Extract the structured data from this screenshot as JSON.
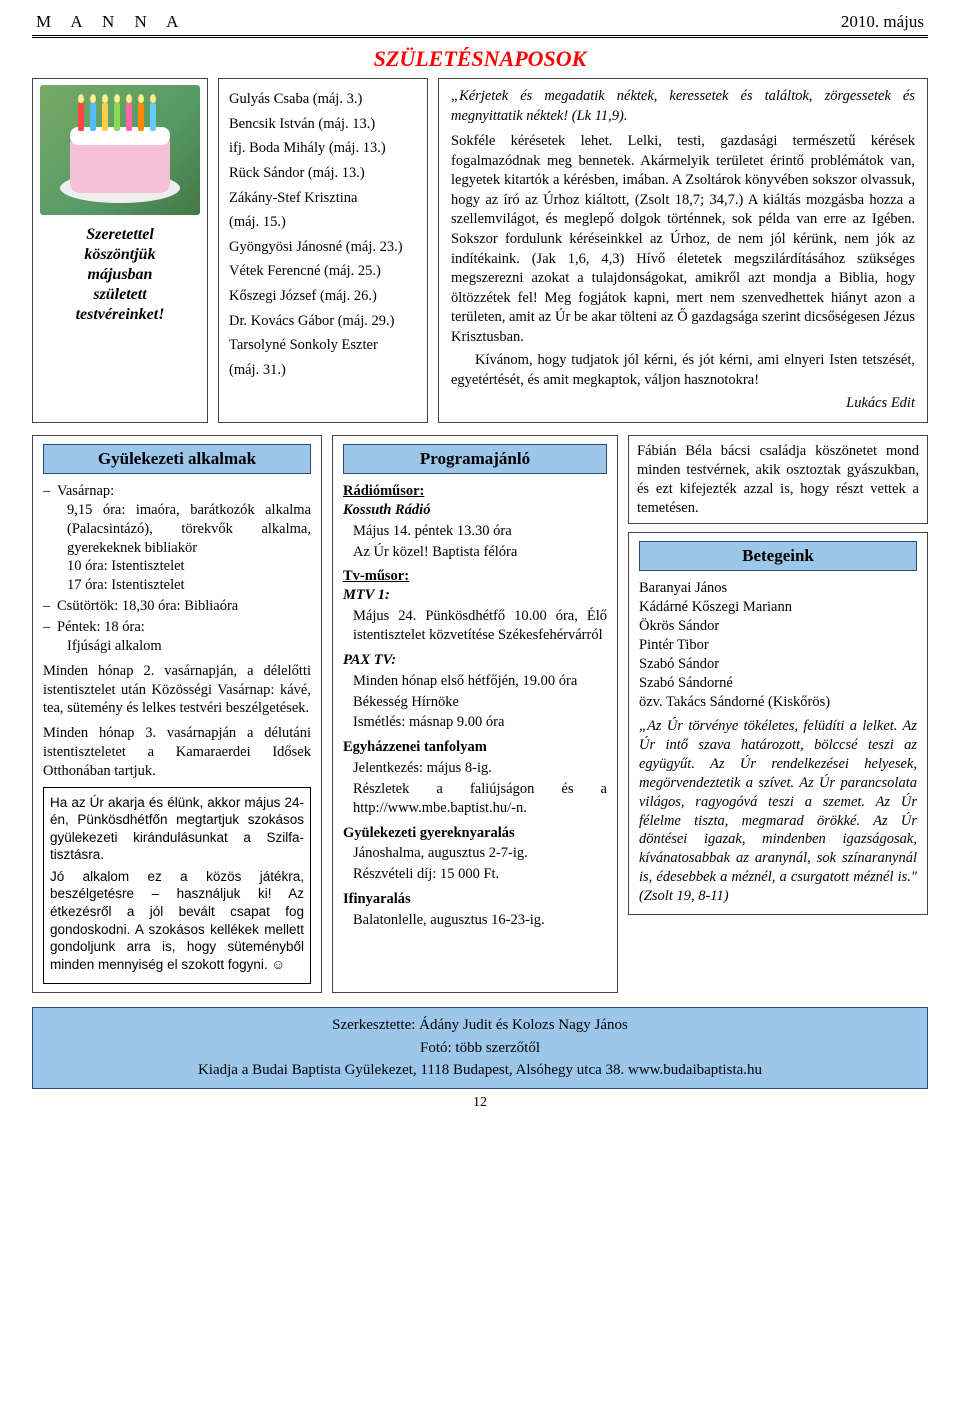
{
  "header": {
    "left": "M A N N A",
    "right": "2010. május"
  },
  "top_title": "SZÜLETÉSNAPOSOK",
  "greeting": "Szeretettel\nköszöntjük\nmájusban\nszületett\ntestvéreinket!",
  "birthday_list": [
    "Gulyás Csaba (máj. 3.)",
    "Bencsik István (máj. 13.)",
    "ifj. Boda Mihály (máj. 13.)",
    "Rück Sándor (máj. 13.)",
    "Zákány-Stef Krisztina",
    "(máj. 15.)",
    "Gyöngyösi Jánosné (máj. 23.)",
    "Vétek Ferencné (máj. 25.)",
    "Kőszegi József (máj. 26.)",
    "Dr. Kovács Gábor (máj. 29.)",
    "Tarsolyné Sonkoly Eszter",
    "(máj. 31.)"
  ],
  "message": {
    "quote": "„Kérjetek és megadatik néktek, keressetek és találtok, zörgessetek és megnyittatik néktek! (Lk 11,9).",
    "body1": "Sokféle kérésetek lehet. Lelki, testi, gazdasági természetű kérések fogalmazódnak meg bennetek. Akármelyik területet érintő problémátok van, legyetek kitartók a kérésben, imában. A Zsoltárok könyvében sokszor olvassuk, hogy az író az Úrhoz kiáltott, (Zsolt 18,7; 34,7.) A kiáltás mozgásba hozza a szellemvilágot, és meglepő dolgok történnek, sok példa van erre az Igében. Sokszor fordulunk kéréseinkkel az Úrhoz, de nem jól kérünk, nem jók az indítékaink. (Jak 1,6, 4,3) Hívő életetek megszilárdításához szükséges megszerezni azokat a tulajdonságokat, amikről azt mondja a Biblia, hogy öltözzétek fel! Meg fogjátok kapni, mert nem szenvedhettek hiányt azon a területen, amit az Úr be akar tölteni az Ő gazdagsága szerint dicsőségesen Jézus Krisztusban.",
    "body2": "Kívánom, hogy tudjatok jól kérni, és jót kérni, ami elnyeri Isten tetszését, egyetértését, és amit megkaptok, váljon hasznotokra!",
    "sign": "Lukács Edit"
  },
  "col1": {
    "title": "Gyülekezeti alkalmak",
    "items": [
      "Vasárnap:\n9,15 óra: imaóra, barátkozók alkalma (Palacsintázó), törekvők alkalma, gyerekeknek bibliakör\n10 óra: Istentisztelet\n17 óra: Istentisztelet",
      "Csütörtök: 18,30 óra: Bibliaóra",
      "Péntek: 18 óra:\nIfjúsági alkalom"
    ],
    "p1": "Minden hónap 2. vasárnapján, a délelőtti istentisztelet után Közösségi Vasárnap: kávé, tea, sütemény és lelkes testvéri beszélgetések.",
    "p2": "Minden hónap 3. vasárnapján a délutáni istentiszteletet a Kamaraerdei Idősek Otthonában tartjuk.",
    "note": "Ha az Úr akarja és élünk, akkor május 24-én, Pünkösdhétfőn megtartjuk szokásos gyülekezeti kirándulásunkat a Szilfa-tisztásra.\nJó alkalom ez a közös játékra, beszélgetésre – használjuk ki! Az étkezésről a jól bevált csapat fog gondoskodni. A szokásos kellékek mellett gondoljunk arra is, hogy süteményből minden mennyiség el szokott fogyni. ☺"
  },
  "col2": {
    "title": "Programajánló",
    "radio_hd": "Rádióműsor:",
    "radio_name": "Kossuth Rádió",
    "radio_l1": "Május 14. péntek 13.30 óra",
    "radio_l2": "Az Úr közel! Baptista félóra",
    "tv_hd": "Tv-műsor:",
    "mtv_name": "MTV 1:",
    "mtv_l1": "Május 24. Pünkösdhétfő 10.00 óra, Élő istentisztelet közvetítése Székesfehérvárról",
    "pax_name": "PAX TV:",
    "pax_l1": "Minden hónap első hétfőjén, 19.00 óra",
    "pax_l2": "Békesség Hírnöke",
    "pax_l3": "Ismétlés: másnap 9.00 óra",
    "egy_hd": "Egyházzenei tanfolyam",
    "egy_l1": "Jelentkezés: május 8-ig.",
    "egy_l2": "Részletek a faliújságon és a http://www.mbe.baptist.hu/-n.",
    "gyerek_hd": "Gyülekezeti gyereknyaralás",
    "gyerek_l1": "Jánoshalma, augusztus 2-7-ig.",
    "gyerek_l2": "Részvételi díj: 15 000 Ft.",
    "ifi_hd": "Ifinyaralás",
    "ifi_l1": "Balatonlelle, augusztus 16-23-ig."
  },
  "col3": {
    "upper": "Fábián Béla bácsi családja köszönetet mond minden testvérnek, akik osztoztak gyászukban, és ezt kifejezték azzal is, hogy részt vettek a temetésen.",
    "title": "Betegeink",
    "list": [
      "Baranyai János",
      "Kádárné Kőszegi Mariann",
      "Ökrös Sándor",
      "Pintér Tibor",
      "Szabó Sándor",
      "Szabó Sándorné",
      "özv. Takács Sándorné (Kiskőrös)"
    ],
    "verse": "„Az Úr törvénye tökéletes, felüdíti a lelket. Az Úr intő szava határozott, bölccsé teszi az együgyűt. Az Úr rendelkezései helyesek, megörvendeztetik a szívet. Az Úr parancsolata világos, ragyogóvá teszi a szemet. Az Úr félelme tiszta, megmarad örökké. Az Úr döntései igazak, mindenben igazságosak, kívánatosabbak az aranynál, sok színaranynál is, édesebbek a méznél, a csurgatott méznél is.\" (Zsolt 19, 8-11)"
  },
  "footer": {
    "l1": "Szerkesztette: Ádány Judit és Kolozs Nagy János",
    "l2": "Fotó: több szerzőtől",
    "l3": "Kiadja a Budai Baptista Gyülekezet, 1118 Budapest, Alsóhegy utca 38. www.budaibaptista.hu"
  },
  "pagenum": "12"
}
